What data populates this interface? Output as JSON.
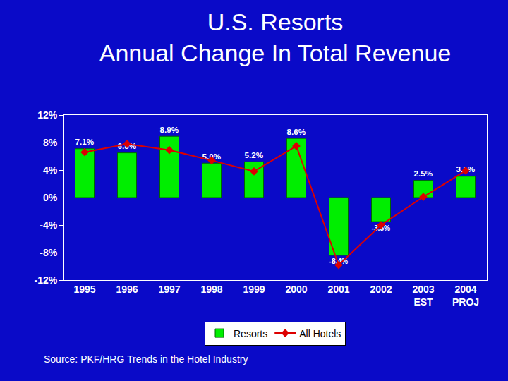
{
  "chart_data": {
    "type": "bar",
    "title": "U.S. Resorts\nAnnual Change In Total Revenue",
    "categories": [
      "1995",
      "1996",
      "1997",
      "1998",
      "1999",
      "2000",
      "2001",
      "2002",
      "2003\nEST",
      "2004\nPROJ"
    ],
    "series": [
      {
        "name": "Resorts",
        "type": "bar",
        "color": "#00ee00",
        "values": [
          7.1,
          6.5,
          8.9,
          5.0,
          5.2,
          8.6,
          -8.4,
          -3.5,
          2.5,
          3.1
        ],
        "value_labels": [
          "7.1%",
          "6.5%",
          "8.9%",
          "5.0%",
          "5.2%",
          "8.6%",
          "-8.4%",
          "-3.5%",
          "2.5%",
          "3.1%"
        ]
      },
      {
        "name": "All Hotels",
        "type": "line",
        "color": "#dd0000",
        "marker": "diamond",
        "values": [
          6.6,
          7.8,
          6.9,
          5.4,
          3.8,
          7.5,
          -9.8,
          -4.0,
          0.1,
          3.9
        ]
      }
    ],
    "ylim": [
      -12,
      12
    ],
    "yticks": [
      {
        "value": -12,
        "label": "-12%"
      },
      {
        "value": -8,
        "label": "-8%"
      },
      {
        "value": -4,
        "label": "-4%"
      },
      {
        "value": 0,
        "label": "0%"
      },
      {
        "value": 4,
        "label": "4%"
      },
      {
        "value": 8,
        "label": "8%"
      },
      {
        "value": 12,
        "label": "12%"
      }
    ],
    "grid": false,
    "data_labels": true,
    "legend": "bottom",
    "annotations": [
      "Source: PKF/HRG Trends in the Hotel Industry"
    ]
  }
}
